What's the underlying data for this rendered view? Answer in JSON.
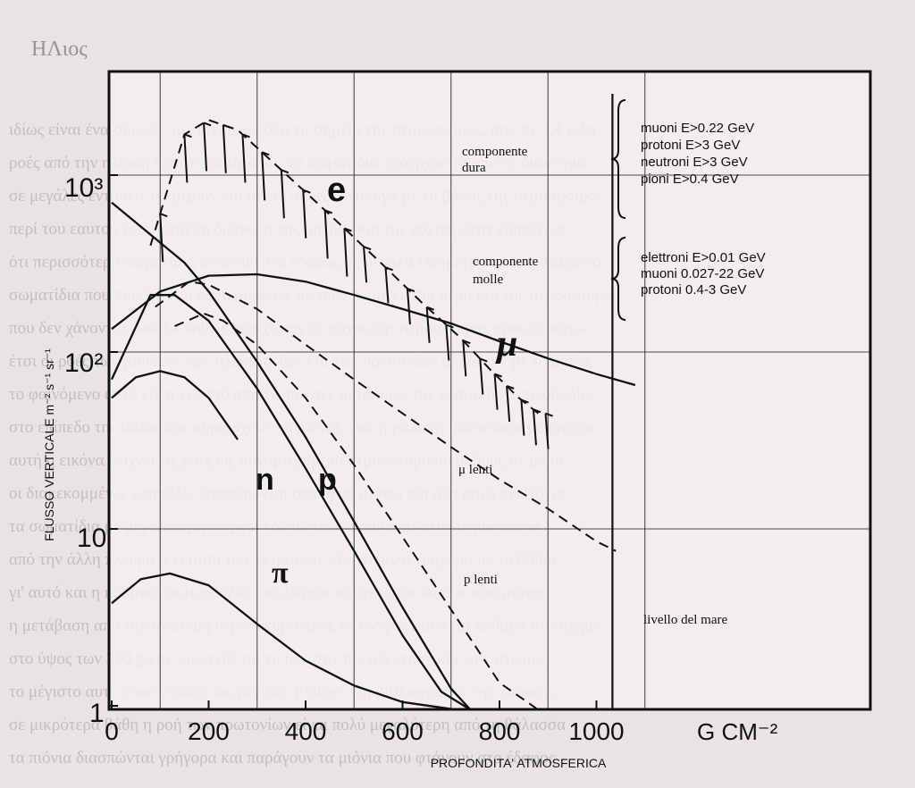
{
  "chart_data": {
    "type": "line",
    "xlabel": "PROFONDITA' ATMOSFERICA",
    "x_unit": "G CM⁻²",
    "ylabel": "FLUSSO VERTICALE m⁻² s⁻¹ sr⁻¹",
    "xlim": [
      0,
      1160
    ],
    "ylim": [
      1,
      3000
    ],
    "yscale": "log",
    "x_ticks": [
      "0",
      "200",
      "400",
      "600",
      "800",
      "1000"
    ],
    "y_ticks": [
      {
        "label": "1",
        "value": 1
      },
      {
        "label": "10",
        "value": 10
      },
      {
        "label": "10²",
        "value": 100
      },
      {
        "label": "10³",
        "value": 1000
      }
    ],
    "grid": true,
    "series": [
      {
        "name": "e",
        "style": "dashed",
        "x": [
          80,
          150,
          200,
          260,
          330,
          400,
          480,
          560,
          640,
          720,
          780,
          840,
          880
        ],
        "y": [
          400,
          1700,
          2050,
          1800,
          1200,
          800,
          500,
          310,
          190,
          120,
          80,
          55,
          45
        ]
      },
      {
        "name": "μ",
        "style": "solid",
        "x": [
          0,
          100,
          200,
          300,
          400,
          500,
          600,
          700,
          800,
          900,
          1000,
          1080
        ],
        "y": [
          135,
          220,
          270,
          275,
          250,
          210,
          175,
          145,
          115,
          92,
          75,
          65
        ]
      },
      {
        "name": "n",
        "style": "solid",
        "x": [
          0,
          150,
          200,
          300,
          400,
          500,
          600,
          700,
          740
        ],
        "y": [
          700,
          320,
          220,
          88,
          33,
          11,
          3.6,
          1.25,
          0.95
        ]
      },
      {
        "name": "p",
        "style": "solid",
        "x": [
          0,
          80,
          130,
          200,
          300,
          400,
          500,
          600,
          680,
          740
        ],
        "y": [
          70,
          210,
          210,
          150,
          62,
          22,
          7.5,
          2.5,
          1.2,
          0.95
        ]
      },
      {
        "name": "μ lenti",
        "style": "dashed",
        "x": [
          90,
          160,
          200,
          300,
          400,
          500,
          600,
          700,
          800,
          900,
          1000,
          1040
        ],
        "y": [
          180,
          250,
          240,
          175,
          110,
          70,
          45,
          29,
          19,
          13,
          8.5,
          7.5
        ]
      },
      {
        "name": "p lenti",
        "style": "dashed",
        "x": [
          130,
          190,
          230,
          300,
          400,
          500,
          600,
          700,
          800,
          880
        ],
        "y": [
          140,
          165,
          150,
          110,
          55,
          23,
          9,
          3.5,
          1.35,
          0.95
        ]
      },
      {
        "name": "π",
        "style": "solid",
        "x": [
          0,
          60,
          120,
          200,
          300,
          400,
          500,
          600,
          700,
          760
        ],
        "y": [
          3.8,
          5.2,
          5.6,
          4.8,
          2.9,
          1.8,
          1.3,
          1.05,
          0.96,
          0.95
        ]
      },
      {
        "name": "",
        "style": "solid",
        "x": [
          0,
          50,
          100,
          150,
          200,
          260
        ],
        "y": [
          55,
          72,
          78,
          72,
          55,
          32
        ]
      }
    ],
    "e_hatch_x": [
      100,
      150,
      190,
      230,
      270,
      310,
      350,
      395,
      440,
      480,
      520,
      565,
      610,
      650,
      690,
      725,
      760,
      790,
      815,
      845,
      870,
      895
    ],
    "annotations": {
      "sea_level": {
        "label": "livello del mare",
        "x": 1033
      },
      "hard_group": {
        "label": [
          "componente",
          "dura"
        ],
        "items": [
          "muoni E>0.22 GeV",
          "protoni E>3 GeV",
          "neutroni E>3 GeV",
          "pioni E>0.4 GeV"
        ]
      },
      "soft_group": {
        "label": [
          "componente",
          "molle"
        ],
        "items": [
          "elettroni E>0.01 GeV",
          "muoni 0.027-22 GeV",
          "protoni 0.4-3 GeV"
        ]
      }
    }
  },
  "scan_header": "ΗΛιος",
  "background_text": [
    "ιδίως είναι ένα σύνολο που ισχύει σε όλα τα σημεία της ατμόσφαιρας, σαν σε 3,4 κ.λπ.",
    "ροές από την ηλιακή δραστηριότητα και τα σωματίδια προέρχονται από το διάστημα",
    "σε μεγάλες εντάσεις υπάρχουν και άλλες πηγές. Ανάλογα με το βάθος της ατμόσφαιρας",
    "περί του εαυτού τους κατά τη διάρκεια της ημέρας και της νύχτας στην επιφάνεια",
    "ότι περισσότερα σωματίδια φτάνουν στο έδαφος σε μεγάλα υψόμετρα από τη θάλασσα",
    "σωματίδια που παράγονται δευτερογενώς με τους πυρήνες του αέρα και της ατμόσφαιρας",
    "που δεν χάνονται εύκολα καθώς διασχίζουν το πάχος της ατμόσφαιρας προς τα κάτω",
    "έτσι οι ροές των μιονίων, των ηλεκτρονίων και των πρωτονίων αλλάζουν με το βάθος",
    "το φαινόμενο αυτό είναι γνωστό από τις πρώτες μετρήσεις της κοσμικής ακτινοβολίας",
    "στο επίπεδο της θάλασσας κυριαρχούν τα μιόνια, ενώ η μαλακή συνιστώσα μειώνεται",
    "αυτή η εικόνα δείχνει τις ροές ως συνάρτηση του ατμοσφαιρικού βάθους σε g/cm²",
    "οι διακεκομμένες καμπύλες αναφέρονται στα αργά μιόνια και στα αργά πρωτόνια",
    "τα σωματίδια με μεγαλύτερη ενέργεια διεισδύουν βαθύτερα στην ατμόσφαιρα",
    "από την άλλη πλευρά η ένταση των νετρονίων πέφτει πολύ γρήγορα με το βάθος",
    "γι' αυτό και η κοσμική ακτινοβολία στο έδαφος αποτελείται κυρίως από μιόνια",
    "η μετάβαση από την ανώτερη ατμόσφαιρα προς το έδαφος φαίνεται καθαρά στο σχήμα",
    "στο ύψος των 200 g/cm² εμφανίζεται το μέγιστο της ηλεκτρονικής συνιστώσας",
    "το μέγιστο αυτό είναι γνωστό ως μέγιστο Pfotzer στη βιβλιογραφία της φυσικής",
    "σε μικρότερα βάθη η ροή των πρωτονίων είναι πολύ μεγαλύτερη από τη θάλασσα",
    "τα πιόνια διασπώνται γρήγορα και παράγουν τα μιόνια που φτάνουν στο έδαφος"
  ]
}
